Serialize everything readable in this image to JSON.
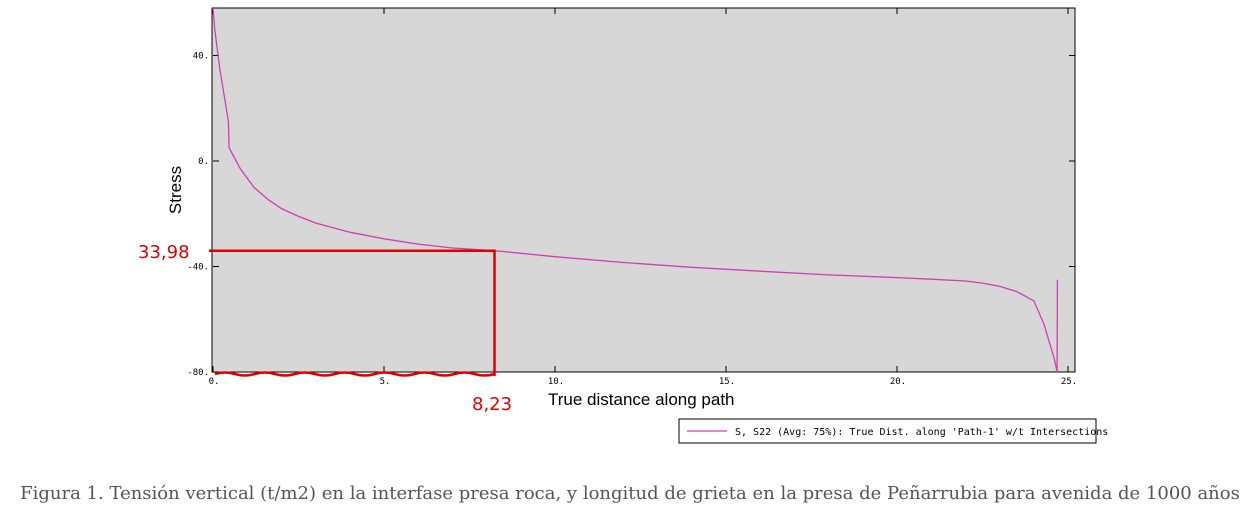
{
  "chart_data": {
    "type": "line",
    "xlabel": "True distance along path",
    "ylabel": "Stress",
    "xlim": [
      0,
      25
    ],
    "ylim": [
      -80,
      58
    ],
    "x_ticks": [
      {
        "v": 0,
        "label": "0."
      },
      {
        "v": 5,
        "label": "5."
      },
      {
        "v": 10,
        "label": "10."
      },
      {
        "v": 15,
        "label": "15."
      },
      {
        "v": 20,
        "label": "20."
      },
      {
        "v": 25,
        "label": "25."
      }
    ],
    "y_ticks": [
      {
        "v": 40,
        "label": "40."
      },
      {
        "v": 0,
        "label": "0."
      },
      {
        "v": -40,
        "label": "-40."
      },
      {
        "v": -80,
        "label": "-80."
      }
    ],
    "series": [
      {
        "name": "S, S22 (Avg: 75%): True Dist. along 'Path-1' w/t Intersections",
        "color": "#d040b0",
        "x": [
          0.0,
          0.05,
          0.2,
          0.45,
          0.47,
          0.8,
          1.2,
          1.6,
          2.0,
          2.5,
          3.0,
          4.0,
          5.0,
          6.0,
          7.0,
          8.23,
          9.0,
          10.0,
          12.0,
          14.0,
          16.0,
          18.0,
          20.0,
          21.0,
          22.0,
          22.5,
          23.0,
          23.5,
          24.0,
          24.3,
          24.6,
          24.68,
          24.69
        ],
        "y": [
          58.0,
          50.0,
          35.0,
          15.0,
          5.0,
          -3.0,
          -10.0,
          -14.5,
          -18.0,
          -21.0,
          -23.5,
          -27.0,
          -29.5,
          -31.5,
          -33.0,
          -34.0,
          -35.0,
          -36.3,
          -38.5,
          -40.3,
          -41.8,
          -43.2,
          -44.2,
          -44.8,
          -45.5,
          -46.3,
          -47.5,
          -49.5,
          -53.0,
          -62.0,
          -75.0,
          -80.0,
          -45.0
        ]
      }
    ],
    "annotations": [
      {
        "label": "33,98",
        "value": -34.0,
        "axis": "y"
      },
      {
        "label": "8,23",
        "value": 8.23,
        "axis": "x"
      }
    ],
    "annotation_color": "#e00000",
    "background_color": "#d7d7d7"
  },
  "caption": "Figura 1. Tensión vertical (t/m2) en la interfase presa roca, y longitud de grieta en la presa de Peñarrubia para avenida de 1000 años"
}
